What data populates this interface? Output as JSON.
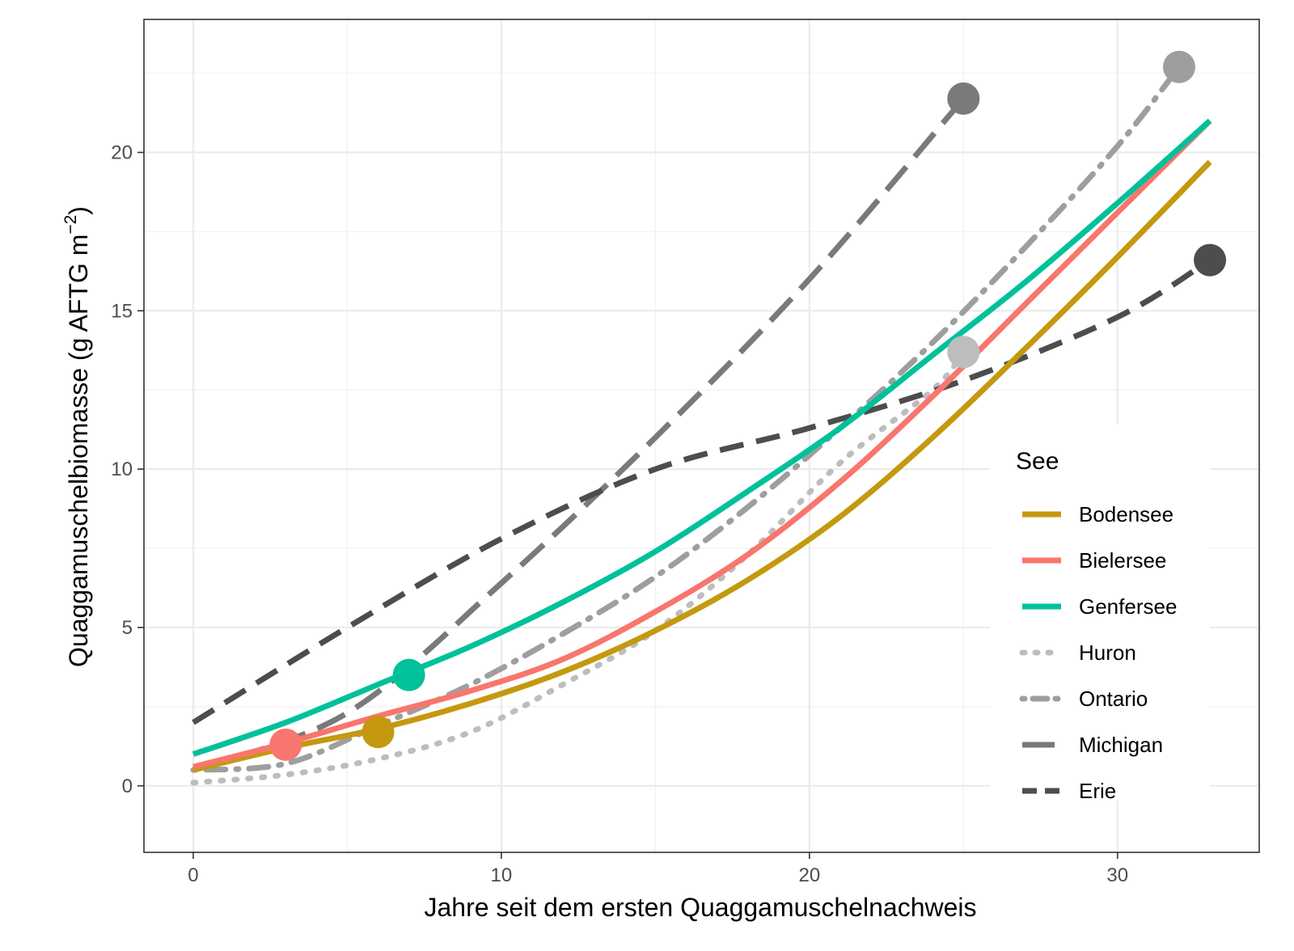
{
  "chart_data": {
    "type": "line",
    "title": "",
    "xlabel": "Jahre seit dem ersten Quaggamuschelnachweis",
    "ylabel": "Quaggamuschelbiomasse (g AFTG m",
    "ylabel_superscript": "−2",
    "ylabel_close": ")",
    "xlim": [
      -1.6,
      34.6
    ],
    "ylim": [
      -2.1,
      24.2
    ],
    "x_ticks": [
      0,
      10,
      20,
      30
    ],
    "y_ticks": [
      0,
      5,
      10,
      15,
      20
    ],
    "grid": true,
    "legend": {
      "title": "See",
      "position": "right-inside-bottom"
    },
    "series": [
      {
        "name": "Bodensee",
        "color": "#C4990F",
        "style": "solid",
        "x": [
          0,
          3,
          6,
          9,
          12,
          15,
          18,
          21,
          24,
          27,
          30,
          33
        ],
        "y": [
          0.5,
          1.2,
          1.8,
          2.6,
          3.6,
          4.9,
          6.5,
          8.5,
          11.0,
          13.8,
          16.7,
          19.7
        ],
        "points": [
          {
            "x": 6,
            "y": 1.7
          }
        ]
      },
      {
        "name": "Bielersee",
        "color": "#F8766D",
        "style": "solid",
        "x": [
          0,
          3,
          6,
          9,
          12,
          15,
          18,
          21,
          24,
          27,
          30,
          33
        ],
        "y": [
          0.6,
          1.35,
          2.2,
          3.0,
          4.0,
          5.5,
          7.3,
          9.6,
          12.3,
          15.2,
          18.1,
          21.0
        ],
        "points": [
          {
            "x": 3,
            "y": 1.3
          }
        ]
      },
      {
        "name": "Genfersee",
        "color": "#00C19A",
        "style": "solid",
        "x": [
          0,
          3,
          6,
          9,
          12,
          15,
          18,
          21,
          24,
          27,
          30,
          33
        ],
        "y": [
          1.0,
          2.0,
          3.2,
          4.4,
          5.8,
          7.4,
          9.3,
          11.3,
          13.6,
          15.9,
          18.4,
          21.0
        ],
        "points": [
          {
            "x": 7,
            "y": 3.5
          }
        ]
      },
      {
        "name": "Huron",
        "color": "#BDBDBD",
        "style": "dotted",
        "x": [
          0,
          3,
          6,
          9,
          12,
          15,
          18,
          21,
          24,
          25
        ],
        "y": [
          0.1,
          0.35,
          0.85,
          1.7,
          3.2,
          4.9,
          7.3,
          10.2,
          12.5,
          13.7
        ],
        "points": [
          {
            "x": 25,
            "y": 13.7
          }
        ]
      },
      {
        "name": "Ontario",
        "color": "#9E9E9E",
        "style": "dotdash",
        "x": [
          0,
          3,
          6,
          9,
          12,
          15,
          18,
          21,
          24,
          27,
          30,
          32
        ],
        "y": [
          0.5,
          0.7,
          1.9,
          3.2,
          4.8,
          6.6,
          8.8,
          11.3,
          14.0,
          17.0,
          20.2,
          22.7
        ],
        "points": [
          {
            "x": 32,
            "y": 22.7
          }
        ]
      },
      {
        "name": "Michigan",
        "color": "#7A7A7A",
        "style": "longdash",
        "x": [
          0,
          5,
          10,
          15,
          20,
          25
        ],
        "y": [
          0.5,
          2.3,
          6.4,
          11.0,
          16.0,
          21.7
        ],
        "points": [
          {
            "x": 25,
            "y": 21.7
          }
        ]
      },
      {
        "name": "Erie",
        "color": "#4D4D4D",
        "style": "dashed",
        "x": [
          0,
          5,
          10,
          15,
          20,
          25,
          30,
          33
        ],
        "y": [
          2.0,
          5.0,
          7.8,
          10.0,
          11.3,
          12.8,
          14.8,
          16.6
        ],
        "points": [
          {
            "x": 33,
            "y": 16.6
          }
        ]
      }
    ]
  }
}
